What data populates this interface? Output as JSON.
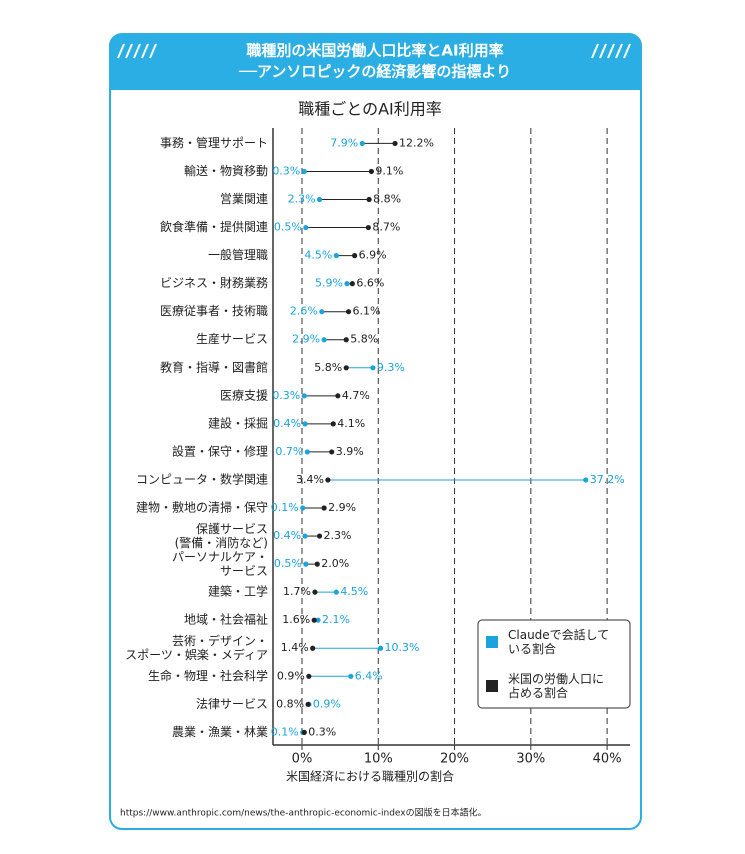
{
  "header": {
    "title_lines": [
      "職種別の米国労働人口比率とAI利用率",
      "──アンソロピックの経済影響の指標より"
    ]
  },
  "chart_data": {
    "type": "dumbbell",
    "title": "職種ごとのAI利用率",
    "x_label": "米国経済における職種別の割合",
    "categories": [
      "事務・管理サポート",
      "輸送・物資移動",
      "営業関連",
      "飲食準備・提供関連",
      "一般管理職",
      "ビジネス・財務業務",
      "医療従事者・技術職",
      "生産サービス",
      "教育・指導・図書館",
      "医療支援",
      "建設・採掘",
      "設置・保守・修理",
      "コンピュータ・数学関連",
      "建物・敷地の清掃・保守",
      "保護サービス\n(警備・消防など)",
      "パーソナルケア・\nサービス",
      "建築・工学",
      "地域・社会福祉",
      "芸術・デザイン・\nスポーツ・娯楽・メディア",
      "生命・物理・社会科学",
      "法律サービス",
      "農業・漁業・林業"
    ],
    "series": [
      {
        "name": "Claudeで会話して\nいる割合",
        "color": "#1aa3dc",
        "values": [
          7.9,
          0.3,
          2.3,
          0.5,
          4.5,
          5.9,
          2.6,
          2.9,
          9.3,
          0.3,
          0.4,
          0.7,
          37.2,
          0.1,
          0.4,
          0.5,
          4.5,
          2.1,
          10.3,
          6.4,
          0.9,
          0.1
        ],
        "value_labels": [
          "7.9%",
          "0.3%",
          "2.3%",
          "0.5%",
          "4.5%",
          "5.9%",
          "2.6%",
          "2.9%",
          "9.3%",
          "0.3%",
          "0.4%",
          "0.7%",
          "37.2%",
          "0.1%",
          "0.4%",
          "0.5%",
          "4.5%",
          "2.1%",
          "10.3%",
          "6.4%",
          "0.9%",
          "0.1%"
        ]
      },
      {
        "name": "米国の労働人口に\n占める割合",
        "color": "#222222",
        "values": [
          12.2,
          9.1,
          8.8,
          8.7,
          6.9,
          6.6,
          6.1,
          5.8,
          5.8,
          4.7,
          4.1,
          3.9,
          3.4,
          2.9,
          2.3,
          2.0,
          1.7,
          1.6,
          1.4,
          0.9,
          0.8,
          0.3
        ],
        "value_labels": [
          "12.2%",
          "9.1%",
          "8.8%",
          "8.7%",
          "6.9%",
          "6.6%",
          "6.1%",
          "5.8%",
          "5.8%",
          "4.7%",
          "4.1%",
          "3.9%",
          "3.4%",
          "2.9%",
          "2.3%",
          "2.0%",
          "1.7%",
          "1.6%",
          "1.4%",
          "0.9%",
          "0.8%",
          "0.3%"
        ]
      }
    ],
    "xlim": [
      -3.8,
      43
    ],
    "xticks": [
      {
        "value": 0,
        "label": "0%"
      },
      {
        "value": 10,
        "label": "10%"
      },
      {
        "value": 20,
        "label": "20%"
      },
      {
        "value": 30,
        "label": "30%"
      },
      {
        "value": 40,
        "label": "40%"
      }
    ],
    "grid": true,
    "legend": "lower right"
  },
  "footer": {
    "source": "https://www.anthropic.com/news/the-anthropic-economic-indexの図版を日本語化。"
  }
}
